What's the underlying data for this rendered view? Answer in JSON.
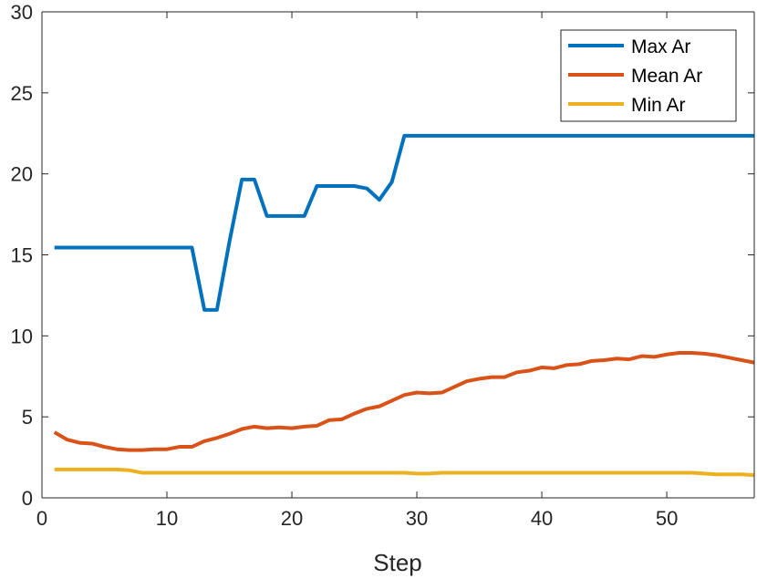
{
  "chart_data": {
    "type": "line",
    "title": "",
    "xlabel": "Step",
    "ylabel": "",
    "xlim": [
      0,
      57
    ],
    "ylim": [
      0,
      30
    ],
    "xticks": [
      0,
      10,
      20,
      30,
      40,
      50
    ],
    "yticks": [
      0,
      5,
      10,
      15,
      20,
      25,
      30
    ],
    "grid": false,
    "legend_position": "top-right",
    "x": [
      1,
      2,
      3,
      4,
      5,
      6,
      7,
      8,
      9,
      10,
      11,
      12,
      13,
      14,
      15,
      16,
      17,
      18,
      19,
      20,
      21,
      22,
      23,
      24,
      25,
      26,
      27,
      28,
      29,
      30,
      31,
      32,
      33,
      34,
      35,
      36,
      37,
      38,
      39,
      40,
      41,
      42,
      43,
      44,
      45,
      46,
      47,
      48,
      49,
      50,
      51,
      52,
      53,
      54,
      55,
      56,
      57
    ],
    "series": [
      {
        "name": "Max Ar",
        "color": "#0072BD",
        "values": [
          15.45,
          15.45,
          15.45,
          15.45,
          15.45,
          15.45,
          15.45,
          15.45,
          15.45,
          15.45,
          15.45,
          15.45,
          11.6,
          11.6,
          15.8,
          19.65,
          19.65,
          17.4,
          17.4,
          17.4,
          17.4,
          19.25,
          19.25,
          19.25,
          19.25,
          19.1,
          18.4,
          19.5,
          22.35,
          22.35,
          22.35,
          22.35,
          22.35,
          22.35,
          22.35,
          22.35,
          22.35,
          22.35,
          22.35,
          22.35,
          22.35,
          22.35,
          22.35,
          22.35,
          22.35,
          22.35,
          22.35,
          22.35,
          22.35,
          22.35,
          22.35,
          22.35,
          22.35,
          22.35,
          22.35,
          22.35,
          22.35
        ]
      },
      {
        "name": "Mean Ar",
        "color": "#D95319",
        "values": [
          4.05,
          3.6,
          3.4,
          3.35,
          3.15,
          3.0,
          2.95,
          2.95,
          3.0,
          3.0,
          3.15,
          3.15,
          3.5,
          3.7,
          3.95,
          4.25,
          4.4,
          4.3,
          4.35,
          4.3,
          4.4,
          4.45,
          4.8,
          4.85,
          5.2,
          5.5,
          5.65,
          6.0,
          6.35,
          6.5,
          6.45,
          6.5,
          6.85,
          7.2,
          7.35,
          7.45,
          7.45,
          7.75,
          7.85,
          8.05,
          8.0,
          8.2,
          8.25,
          8.45,
          8.5,
          8.6,
          8.55,
          8.75,
          8.7,
          8.85,
          8.95,
          8.95,
          8.9,
          8.8,
          8.65,
          8.5,
          8.35
        ]
      },
      {
        "name": "Min Ar",
        "color": "#EDB120",
        "values": [
          1.75,
          1.75,
          1.75,
          1.75,
          1.75,
          1.75,
          1.7,
          1.55,
          1.55,
          1.55,
          1.55,
          1.55,
          1.55,
          1.55,
          1.55,
          1.55,
          1.55,
          1.55,
          1.55,
          1.55,
          1.55,
          1.55,
          1.55,
          1.55,
          1.55,
          1.55,
          1.55,
          1.55,
          1.55,
          1.5,
          1.5,
          1.55,
          1.55,
          1.55,
          1.55,
          1.55,
          1.55,
          1.55,
          1.55,
          1.55,
          1.55,
          1.55,
          1.55,
          1.55,
          1.55,
          1.55,
          1.55,
          1.55,
          1.55,
          1.55,
          1.55,
          1.55,
          1.5,
          1.45,
          1.45,
          1.45,
          1.4
        ]
      }
    ]
  }
}
